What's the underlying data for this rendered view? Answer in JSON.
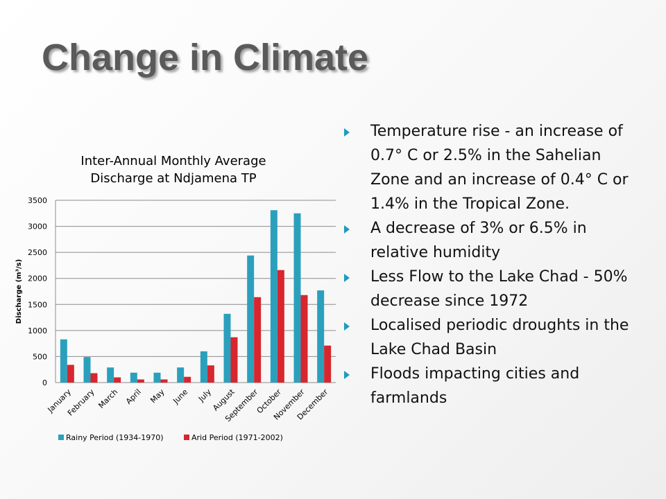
{
  "slide": {
    "title": "Change in Climate",
    "bullets": [
      "Temperature rise - an increase of 0.7° C or 2.5% in the Sahelian Zone and an increase of 0.4° C or 1.4% in the Tropical Zone.",
      "A decrease of 3% or 6.5% in relative humidity",
      "Less Flow to the Lake Chad - 50% decrease since 1972",
      "Localised periodic droughts in the Lake Chad Basin",
      "Floods impacting cities and farmlands"
    ],
    "bullet_icon": "triangle-bullet-icon",
    "bullet_color": "#1f9bbf"
  },
  "chart_data": {
    "type": "bar",
    "title_lines": [
      "Inter-Annual Monthly Average",
      "Discharge at Ndjamena TP"
    ],
    "ylabel": "Discharge (m³/s)",
    "xlabel": "",
    "ylim": [
      0,
      3500
    ],
    "yticks": [
      0,
      500,
      1000,
      1500,
      2000,
      2500,
      3000,
      3500
    ],
    "grid": true,
    "legend_position": "bottom",
    "categories": [
      "January",
      "February",
      "March",
      "April",
      "May",
      "June",
      "July",
      "August",
      "September",
      "October",
      "November",
      "December"
    ],
    "series": [
      {
        "name": "Rainy Period (1934-1970)",
        "color": "#2ba0bd",
        "values": [
          830,
          490,
          290,
          190,
          190,
          290,
          600,
          1320,
          2440,
          3310,
          3250,
          1770
        ]
      },
      {
        "name": "Arid Period (1971-2002)",
        "color": "#d7262e",
        "values": [
          340,
          180,
          100,
          60,
          60,
          110,
          330,
          870,
          1640,
          2160,
          1680,
          710
        ]
      }
    ]
  }
}
